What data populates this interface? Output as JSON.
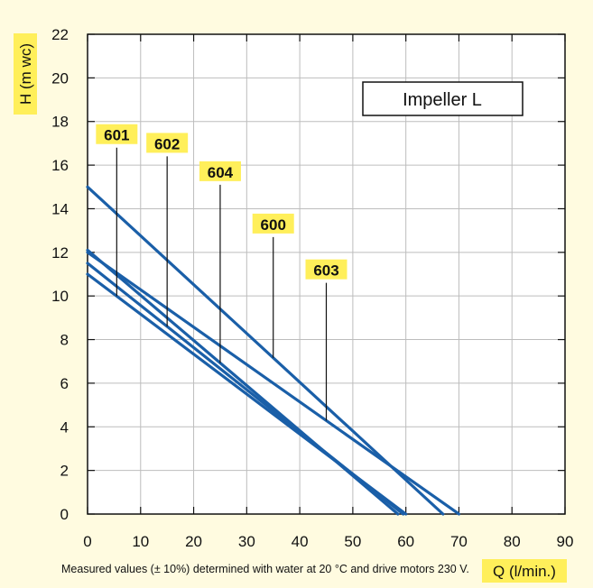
{
  "chart_data": {
    "type": "line",
    "title": "Impeller L",
    "xlabel": "Q (l/min.)",
    "ylabel": "H (m wc)",
    "xlim": [
      0,
      90
    ],
    "ylim": [
      0,
      22
    ],
    "xticks": [
      0,
      10,
      20,
      30,
      40,
      50,
      60,
      70,
      80,
      90
    ],
    "yticks": [
      0,
      2,
      4,
      6,
      8,
      10,
      12,
      14,
      16,
      18,
      20,
      22
    ],
    "grid": true,
    "series": [
      {
        "name": "601",
        "x": [
          0,
          60
        ],
        "y": [
          11.0,
          0
        ],
        "label_x": 5.5,
        "label_y": 16.8
      },
      {
        "name": "602",
        "x": [
          0,
          59.5
        ],
        "y": [
          11.5,
          0
        ],
        "label_x": 15,
        "label_y": 16.4
      },
      {
        "name": "604",
        "x": [
          0,
          58.5
        ],
        "y": [
          12.1,
          0
        ],
        "label_x": 25,
        "label_y": 15.1
      },
      {
        "name": "600",
        "x": [
          0,
          67
        ],
        "y": [
          15.0,
          0
        ],
        "label_x": 35,
        "label_y": 12.7
      },
      {
        "name": "603",
        "x": [
          0,
          70
        ],
        "y": [
          12.0,
          0
        ],
        "label_x": 45,
        "label_y": 10.6
      }
    ],
    "colors": {
      "line": "#1a5fa8",
      "highlight": "#ffef5a",
      "background": "#fffbe0"
    }
  },
  "footnote": "Measured values (± 10%) determined with water at 20 °C and drive motors 230 V."
}
